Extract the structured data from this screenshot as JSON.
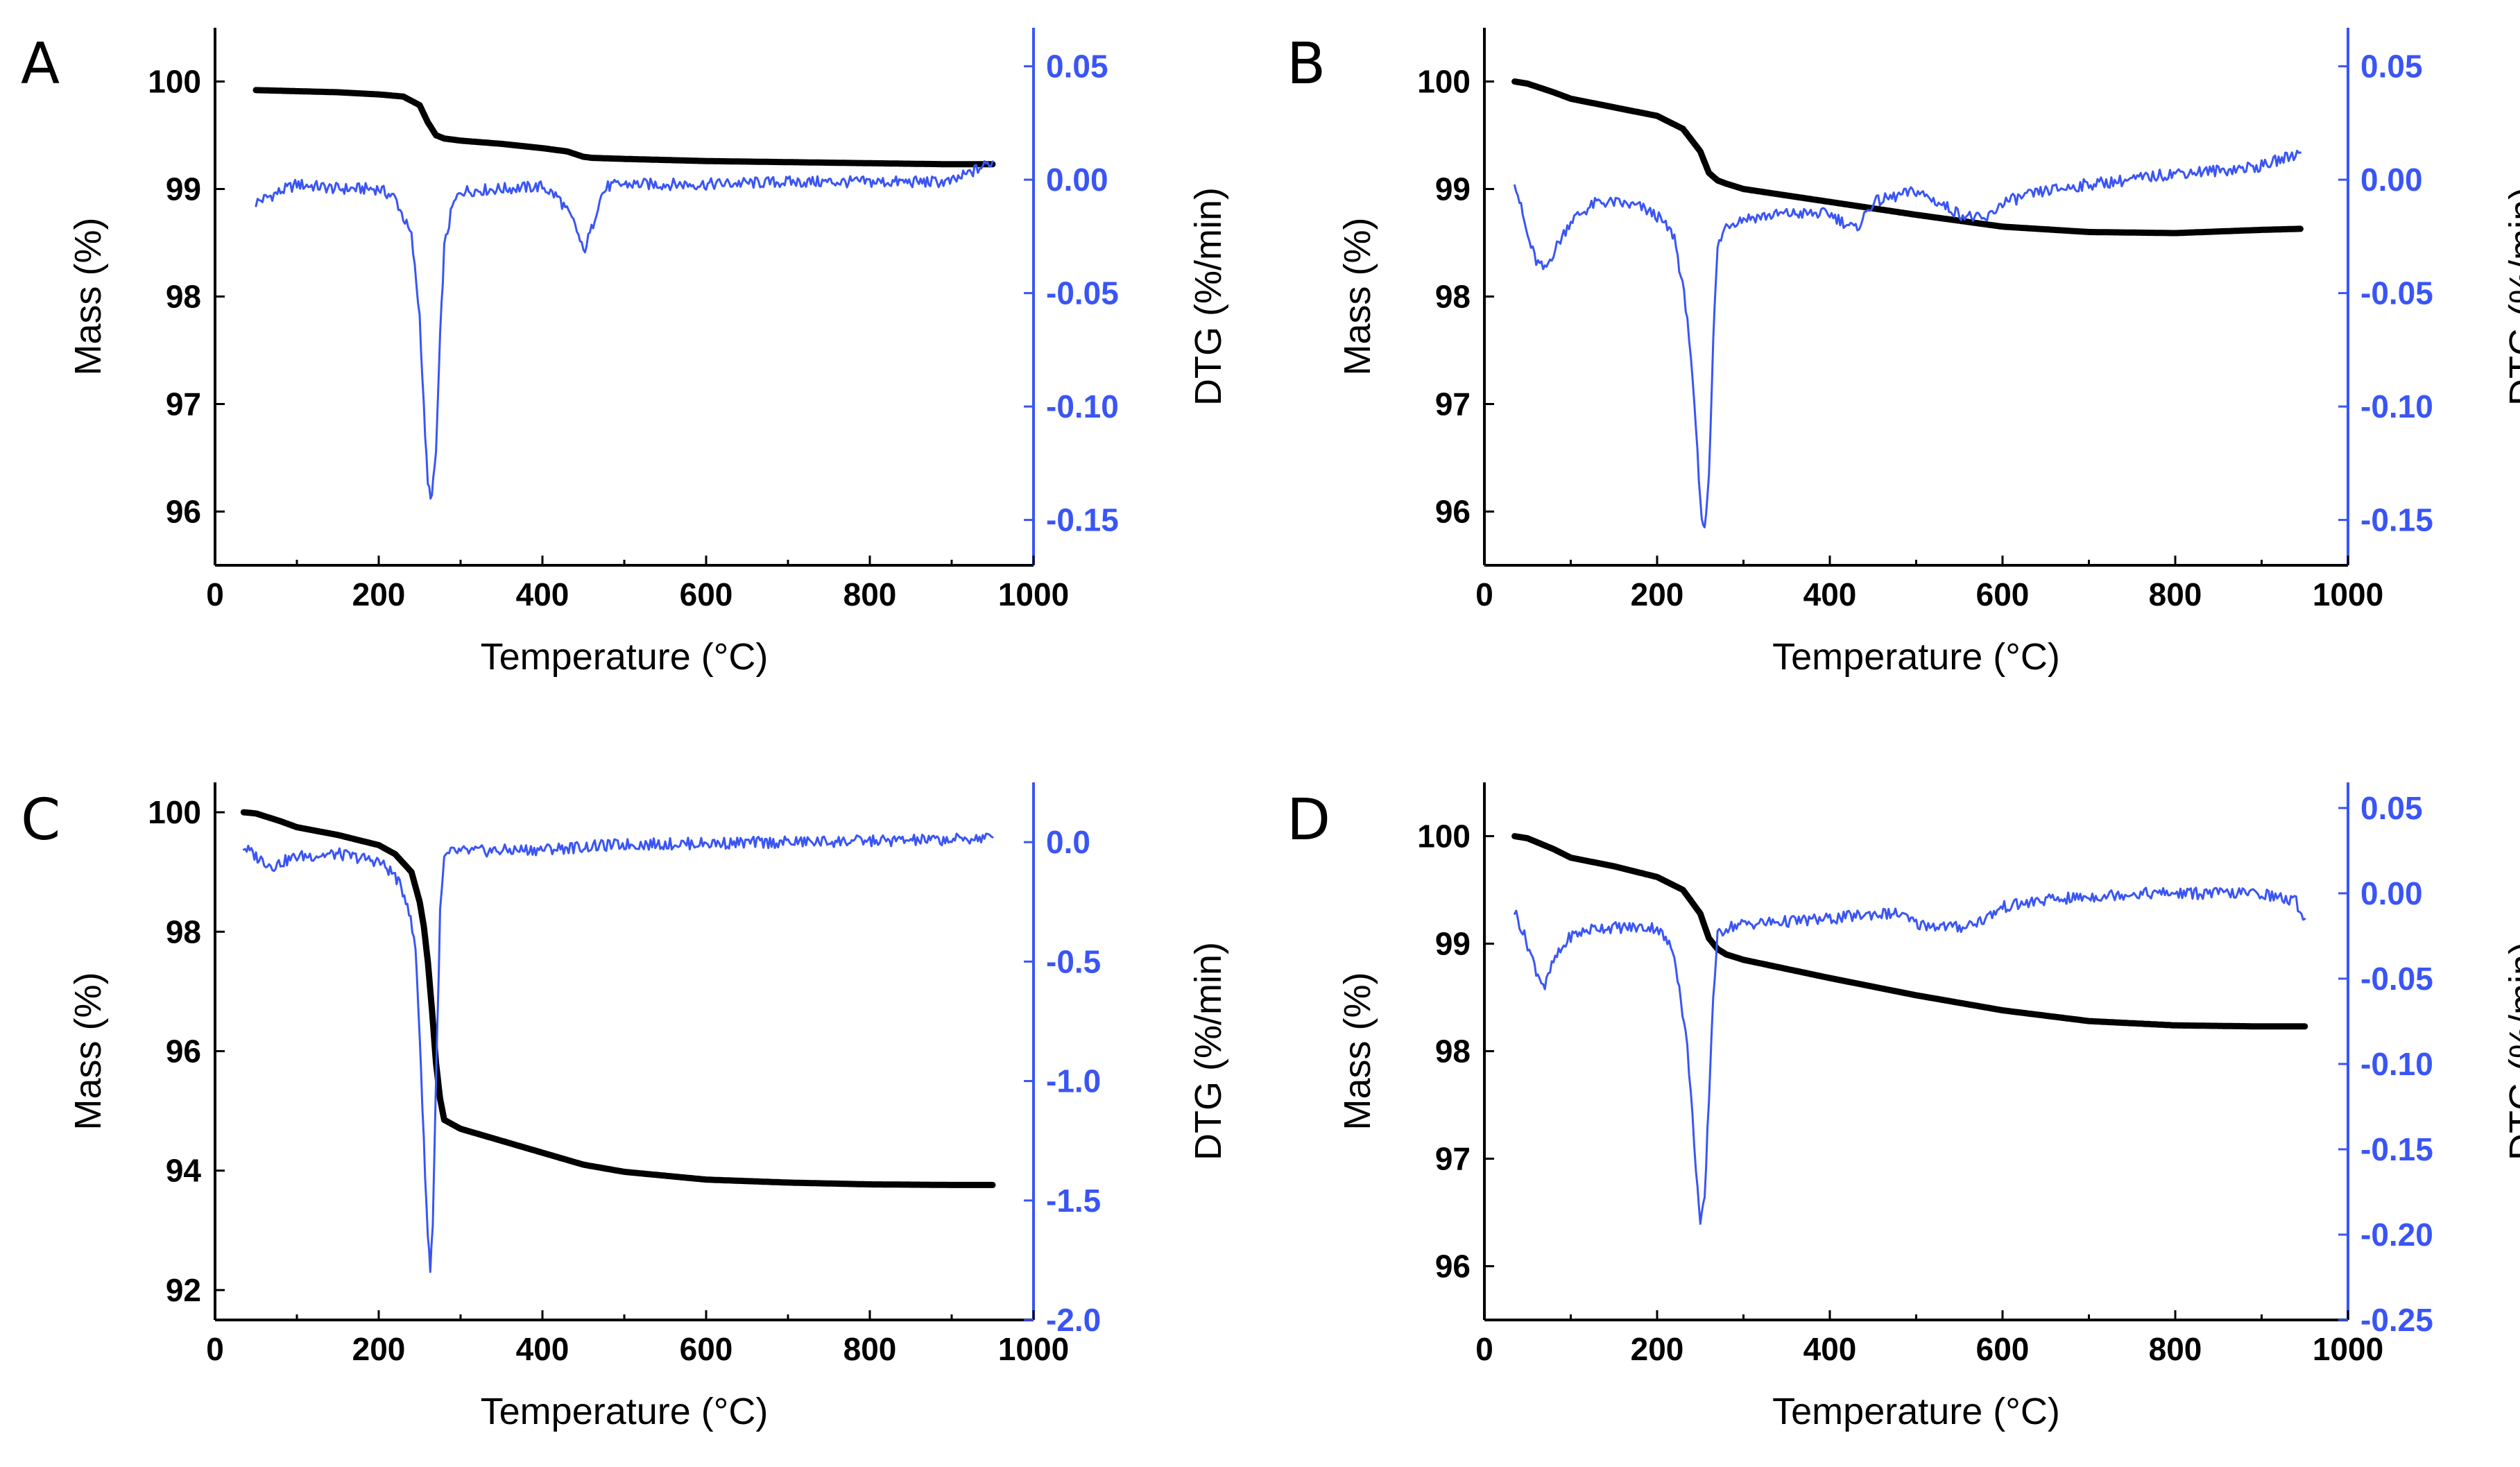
{
  "colors": {
    "mass": "#000000",
    "dtg": "#3a55f5",
    "axis": "#000000"
  },
  "chart_data": [
    {
      "panel": "A",
      "type": "line",
      "xlabel": "Temperature (°C)",
      "ylabel": "Mass (%)",
      "y2label": "DTG (%/min)",
      "xlim": [
        0,
        1000
      ],
      "ylim": [
        95.5,
        100.5
      ],
      "y2lim": [
        -0.17,
        0.067
      ],
      "xticks": [
        0,
        200,
        400,
        600,
        800,
        1000
      ],
      "yticks": [
        96,
        97,
        98,
        99,
        100
      ],
      "y2ticks": [
        0.05,
        0.0,
        -0.05,
        -0.1,
        -0.15
      ],
      "y2ticklabels": [
        "0.05",
        "0.00",
        "-0.05",
        "-0.10",
        "-0.15"
      ],
      "series": [
        {
          "name": "Mass",
          "axis": "left",
          "x": [
            50,
            100,
            150,
            200,
            230,
            250,
            260,
            270,
            280,
            300,
            350,
            400,
            430,
            450,
            460,
            500,
            600,
            700,
            800,
            900,
            950
          ],
          "y": [
            99.92,
            99.91,
            99.9,
            99.88,
            99.86,
            99.78,
            99.62,
            99.5,
            99.47,
            99.45,
            99.42,
            99.38,
            99.35,
            99.3,
            99.29,
            99.28,
            99.26,
            99.25,
            99.24,
            99.23,
            99.23
          ]
        },
        {
          "name": "DTG",
          "axis": "right",
          "x": [
            50,
            100,
            150,
            200,
            220,
            240,
            250,
            255,
            260,
            265,
            270,
            275,
            280,
            290,
            300,
            350,
            400,
            420,
            440,
            450,
            460,
            470,
            480,
            500,
            600,
            700,
            800,
            900,
            950
          ],
          "y": [
            -0.01,
            -0.002,
            -0.004,
            -0.004,
            -0.008,
            -0.025,
            -0.06,
            -0.1,
            -0.135,
            -0.14,
            -0.12,
            -0.07,
            -0.03,
            -0.012,
            -0.005,
            -0.004,
            -0.003,
            -0.008,
            -0.02,
            -0.032,
            -0.022,
            -0.008,
            -0.003,
            -0.002,
            -0.002,
            -0.001,
            -0.001,
            -0.001,
            0.008
          ]
        }
      ]
    },
    {
      "panel": "B",
      "type": "line",
      "xlabel": "Temperature (°C)",
      "ylabel": "Mass (%)",
      "y2label": "DTG (%/min)",
      "xlim": [
        0,
        1000
      ],
      "ylim": [
        95.5,
        100.5
      ],
      "y2lim": [
        -0.17,
        0.067
      ],
      "xticks": [
        0,
        200,
        400,
        600,
        800,
        1000
      ],
      "yticks": [
        96,
        97,
        98,
        99,
        100
      ],
      "y2ticks": [
        0.05,
        0.0,
        -0.05,
        -0.1,
        -0.15
      ],
      "y2ticklabels": [
        "0.05",
        "0.00",
        "-0.05",
        "-0.10",
        "-0.15"
      ],
      "series": [
        {
          "name": "Mass",
          "axis": "left",
          "x": [
            35,
            50,
            80,
            100,
            150,
            200,
            230,
            250,
            260,
            270,
            280,
            300,
            400,
            500,
            600,
            700,
            800,
            900,
            945
          ],
          "y": [
            100.0,
            99.98,
            99.9,
            99.84,
            99.76,
            99.68,
            99.56,
            99.35,
            99.15,
            99.08,
            99.05,
            99.0,
            98.88,
            98.76,
            98.65,
            98.6,
            98.59,
            98.62,
            98.63
          ]
        },
        {
          "name": "DTG",
          "axis": "right",
          "x": [
            35,
            50,
            60,
            70,
            80,
            100,
            130,
            150,
            180,
            200,
            220,
            235,
            245,
            250,
            255,
            260,
            265,
            270,
            280,
            300,
            350,
            400,
            430,
            450,
            500,
            550,
            580,
            600,
            650,
            700,
            750,
            800,
            850,
            900,
            945
          ],
          "y": [
            0.0,
            -0.025,
            -0.036,
            -0.04,
            -0.032,
            -0.018,
            -0.01,
            -0.01,
            -0.012,
            -0.016,
            -0.025,
            -0.06,
            -0.11,
            -0.143,
            -0.155,
            -0.13,
            -0.07,
            -0.03,
            -0.02,
            -0.017,
            -0.015,
            -0.015,
            -0.022,
            -0.01,
            -0.005,
            -0.015,
            -0.018,
            -0.01,
            -0.005,
            -0.002,
            0.0,
            0.003,
            0.004,
            0.006,
            0.012
          ]
        }
      ]
    },
    {
      "panel": "C",
      "type": "line",
      "xlabel": "Temperature (°C)",
      "ylabel": "Mass (%)",
      "y2label": "DTG (%/min)",
      "xlim": [
        0,
        1000
      ],
      "ylim": [
        91.5,
        100.5
      ],
      "y2lim": [
        -2.0,
        0.25
      ],
      "xticks": [
        0,
        200,
        400,
        600,
        800,
        1000
      ],
      "yticks": [
        92,
        94,
        96,
        98,
        100
      ],
      "y2ticks": [
        0.0,
        -0.5,
        -1.0,
        -1.5,
        -2.0
      ],
      "y2ticklabels": [
        "0.0",
        "-0.5",
        "-1.0",
        "-1.5",
        "-2.0"
      ],
      "series": [
        {
          "name": "Mass",
          "axis": "left",
          "x": [
            35,
            50,
            80,
            100,
            150,
            200,
            220,
            240,
            250,
            255,
            260,
            265,
            270,
            275,
            280,
            300,
            350,
            400,
            450,
            500,
            600,
            700,
            800,
            900,
            950
          ],
          "y": [
            100.0,
            99.98,
            99.85,
            99.75,
            99.62,
            99.45,
            99.3,
            99.0,
            98.5,
            98.1,
            97.5,
            96.7,
            95.8,
            95.2,
            94.85,
            94.7,
            94.5,
            94.3,
            94.1,
            93.98,
            93.85,
            93.8,
            93.77,
            93.76,
            93.76
          ]
        },
        {
          "name": "DTG",
          "axis": "right",
          "x": [
            35,
            50,
            70,
            100,
            150,
            200,
            220,
            235,
            245,
            250,
            255,
            260,
            263,
            266,
            270,
            275,
            280,
            290,
            300,
            350,
            400,
            450,
            500,
            600,
            700,
            800,
            900,
            950
          ],
          "y": [
            -0.02,
            -0.06,
            -0.1,
            -0.06,
            -0.05,
            -0.08,
            -0.14,
            -0.25,
            -0.45,
            -0.8,
            -1.25,
            -1.65,
            -1.78,
            -1.6,
            -1.0,
            -0.3,
            -0.07,
            -0.04,
            -0.04,
            -0.035,
            -0.03,
            -0.02,
            -0.01,
            -0.005,
            0.0,
            0.005,
            0.01,
            0.02
          ]
        }
      ]
    },
    {
      "panel": "D",
      "type": "line",
      "xlabel": "Temperature (°C)",
      "ylabel": "Mass (%)",
      "y2label": "DTG (%/min)",
      "xlim": [
        0,
        1000
      ],
      "ylim": [
        95.5,
        100.5
      ],
      "y2lim": [
        -0.25,
        0.065
      ],
      "xticks": [
        0,
        200,
        400,
        600,
        800,
        1000
      ],
      "yticks": [
        96,
        97,
        98,
        99,
        100
      ],
      "y2ticks": [
        0.05,
        0.0,
        -0.05,
        -0.1,
        -0.15,
        -0.2,
        -0.25
      ],
      "y2ticklabels": [
        "0.05",
        "0.00",
        "-0.05",
        "-0.10",
        "-0.15",
        "-0.20",
        "-0.25"
      ],
      "series": [
        {
          "name": "Mass",
          "axis": "left",
          "x": [
            35,
            50,
            80,
            100,
            150,
            200,
            230,
            250,
            260,
            270,
            280,
            300,
            400,
            500,
            600,
            700,
            800,
            900,
            950
          ],
          "y": [
            100.0,
            99.98,
            99.88,
            99.8,
            99.72,
            99.62,
            99.5,
            99.28,
            99.05,
            98.95,
            98.9,
            98.85,
            98.68,
            98.52,
            98.38,
            98.28,
            98.24,
            98.23,
            98.23
          ]
        },
        {
          "name": "DTG",
          "axis": "right",
          "x": [
            35,
            50,
            60,
            70,
            80,
            100,
            130,
            150,
            200,
            220,
            235,
            245,
            250,
            255,
            260,
            265,
            270,
            280,
            300,
            400,
            450,
            480,
            500,
            550,
            580,
            600,
            650,
            700,
            750,
            800,
            850,
            900,
            940,
            950
          ],
          "y": [
            -0.01,
            -0.03,
            -0.045,
            -0.055,
            -0.04,
            -0.025,
            -0.02,
            -0.02,
            -0.02,
            -0.035,
            -0.09,
            -0.16,
            -0.195,
            -0.18,
            -0.12,
            -0.06,
            -0.025,
            -0.02,
            -0.018,
            -0.015,
            -0.012,
            -0.012,
            -0.018,
            -0.02,
            -0.015,
            -0.008,
            -0.004,
            -0.002,
            0.0,
            0.0,
            0.0,
            0.0,
            -0.005,
            -0.015
          ]
        }
      ]
    }
  ]
}
